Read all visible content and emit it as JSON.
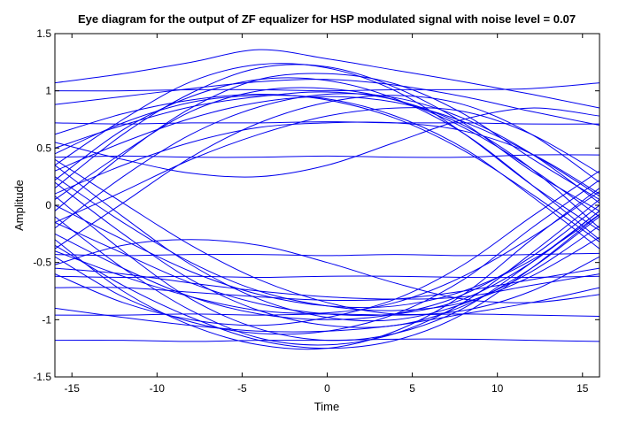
{
  "chart_data": {
    "type": "line",
    "title": "Eye diagram for the output of ZF equalizer for HSP modulated signal with noise level = 0.07",
    "xlabel": "Time",
    "ylabel": "Amplitude",
    "xlim": [
      -16,
      16
    ],
    "ylim": [
      -1.5,
      1.5
    ],
    "xticks": [
      -15,
      -10,
      -5,
      0,
      5,
      10,
      15
    ],
    "yticks": [
      -1.5,
      -1,
      -0.5,
      0,
      0.5,
      1,
      1.5
    ],
    "xtick_labels": [
      "-15",
      "-10",
      "-5",
      "0",
      "5",
      "10",
      "15"
    ],
    "ytick_labels": [
      "-1.5",
      "-1",
      "-0.5",
      "0",
      "0.5",
      "1",
      "1.5"
    ],
    "grid": false,
    "legend": "none",
    "line_color": "#0000ee",
    "x": [
      -16,
      -12,
      -8,
      -4,
      0,
      4,
      8,
      12,
      16
    ],
    "series": [
      {
        "values": [
          1.07,
          1.15,
          1.25,
          1.36,
          1.28,
          1.18,
          1.08,
          0.97,
          0.85
        ]
      },
      {
        "values": [
          1.0,
          1.0,
          1.01,
          1.01,
          1.0,
          1.01,
          1.01,
          1.02,
          1.07
        ]
      },
      {
        "values": [
          0.72,
          0.71,
          0.72,
          0.72,
          0.73,
          0.72,
          0.72,
          0.71,
          0.71
        ]
      },
      {
        "values": [
          0.42,
          0.43,
          0.42,
          0.42,
          0.43,
          0.42,
          0.42,
          0.44,
          0.44
        ]
      },
      {
        "values": [
          -0.43,
          -0.44,
          -0.43,
          -0.43,
          -0.44,
          -0.43,
          -0.44,
          -0.43,
          -0.42
        ]
      },
      {
        "values": [
          -0.62,
          -0.63,
          -0.62,
          -0.63,
          -0.62,
          -0.62,
          -0.63,
          -0.63,
          -0.62
        ]
      },
      {
        "values": [
          -0.96,
          -0.96,
          -0.95,
          -0.96,
          -0.95,
          -0.96,
          -0.95,
          -0.96,
          -0.97
        ]
      },
      {
        "values": [
          -1.18,
          -1.18,
          -1.19,
          -1.18,
          -1.18,
          -1.17,
          -1.17,
          -1.18,
          -1.19
        ]
      },
      {
        "values": [
          0.35,
          0.75,
          1.08,
          1.23,
          1.2,
          1.0,
          0.63,
          0.18,
          -0.22
        ]
      },
      {
        "values": [
          0.15,
          0.62,
          0.98,
          1.2,
          1.21,
          1.03,
          0.72,
          0.3,
          -0.05
        ]
      },
      {
        "values": [
          -0.05,
          0.44,
          0.85,
          1.1,
          1.15,
          1.06,
          0.8,
          0.41,
          0.05
        ]
      },
      {
        "values": [
          0.22,
          0.66,
          0.95,
          1.1,
          1.09,
          0.93,
          0.63,
          0.18,
          -0.3
        ]
      },
      {
        "values": [
          0.05,
          0.46,
          0.82,
          1.0,
          1.02,
          0.92,
          0.68,
          0.32,
          -0.1
        ]
      },
      {
        "values": [
          -0.2,
          0.25,
          0.62,
          0.86,
          0.97,
          0.94,
          0.76,
          0.45,
          0.02
        ]
      },
      {
        "values": [
          0.45,
          0.72,
          0.9,
          0.96,
          0.93,
          0.78,
          0.5,
          0.08,
          -0.38
        ]
      },
      {
        "values": [
          0.3,
          0.55,
          0.76,
          0.9,
          0.95,
          0.9,
          0.73,
          0.45,
          0.08
        ]
      },
      {
        "values": [
          -0.38,
          0.02,
          0.42,
          0.72,
          0.9,
          0.96,
          0.88,
          0.62,
          0.2
        ]
      },
      {
        "values": [
          0.62,
          0.8,
          0.92,
          0.97,
          0.92,
          0.76,
          0.48,
          0.1,
          -0.32
        ]
      },
      {
        "values": [
          0.1,
          0.35,
          0.55,
          0.68,
          0.72,
          0.72,
          0.65,
          0.45,
          0.1
        ]
      },
      {
        "values": [
          -0.15,
          0.12,
          0.4,
          0.62,
          0.78,
          0.85,
          0.82,
          0.62,
          0.28
        ]
      },
      {
        "values": [
          0.5,
          0.7,
          0.86,
          0.95,
          0.99,
          0.92,
          0.7,
          0.32,
          -0.2
        ]
      },
      {
        "values": [
          -0.3,
          -0.75,
          -1.05,
          -1.22,
          -1.25,
          -1.1,
          -0.78,
          -0.3,
          0.15
        ]
      },
      {
        "values": [
          -0.1,
          -0.55,
          -0.92,
          -1.16,
          -1.22,
          -1.12,
          -0.85,
          -0.42,
          0.05
        ]
      },
      {
        "values": [
          0.08,
          -0.4,
          -0.82,
          -1.08,
          -1.18,
          -1.12,
          -0.9,
          -0.5,
          -0.05
        ]
      },
      {
        "values": [
          -0.45,
          -0.8,
          -1.02,
          -1.12,
          -1.1,
          -0.95,
          -0.65,
          -0.2,
          0.22
        ]
      },
      {
        "values": [
          0.2,
          -0.25,
          -0.65,
          -0.92,
          -1.05,
          -1.05,
          -0.88,
          -0.55,
          -0.1
        ]
      },
      {
        "values": [
          -0.25,
          -0.55,
          -0.8,
          -0.95,
          -1.0,
          -0.95,
          -0.78,
          -0.45,
          0.0
        ]
      },
      {
        "values": [
          0.35,
          -0.1,
          -0.52,
          -0.82,
          -0.98,
          -1.0,
          -0.86,
          -0.58,
          -0.18
        ]
      },
      {
        "values": [
          -0.6,
          -0.85,
          -1.0,
          -1.05,
          -0.98,
          -0.82,
          -0.52,
          -0.1,
          0.3
        ]
      },
      {
        "values": [
          -0.15,
          -0.42,
          -0.68,
          -0.86,
          -0.95,
          -0.95,
          -0.82,
          -0.5,
          -0.05
        ]
      },
      {
        "values": [
          0.0,
          -0.3,
          -0.58,
          -0.78,
          -0.88,
          -0.88,
          -0.75,
          -0.48,
          -0.08
        ]
      },
      {
        "values": [
          -0.4,
          -0.62,
          -0.8,
          -0.92,
          -0.94,
          -0.85,
          -0.62,
          -0.28,
          0.12
        ]
      },
      {
        "values": [
          -0.72,
          -0.72,
          -0.76,
          -0.8,
          -0.83,
          -0.82,
          -0.75,
          -0.65,
          -0.55
        ]
      },
      {
        "values": [
          0.25,
          -0.15,
          -0.5,
          -0.75,
          -0.88,
          -0.92,
          -0.85,
          -0.62,
          -0.28
        ]
      },
      {
        "values": [
          -0.35,
          -0.7,
          -0.98,
          -1.18,
          -1.25,
          -1.18,
          -0.95,
          -0.55,
          -0.08
        ]
      },
      {
        "values": [
          0.4,
          0.02,
          -0.35,
          -0.65,
          -0.85,
          -0.95,
          -0.92,
          -0.75,
          -0.45
        ]
      },
      {
        "values": [
          -0.55,
          -0.6,
          -0.68,
          -0.75,
          -0.8,
          -0.82,
          -0.8,
          -0.7,
          -0.6
        ]
      },
      {
        "values": [
          0.55,
          0.4,
          0.28,
          0.25,
          0.35,
          0.55,
          0.75,
          0.85,
          0.78
        ]
      },
      {
        "values": [
          -0.52,
          -0.35,
          -0.3,
          -0.35,
          -0.5,
          -0.68,
          -0.82,
          -0.85,
          -0.78
        ]
      },
      {
        "values": [
          0.88,
          0.95,
          1.02,
          1.08,
          1.1,
          1.05,
          0.95,
          0.82,
          0.7
        ]
      },
      {
        "values": [
          -0.9,
          -0.98,
          -1.05,
          -1.1,
          -1.1,
          -1.05,
          -0.95,
          -0.85,
          -0.72
        ]
      }
    ]
  }
}
